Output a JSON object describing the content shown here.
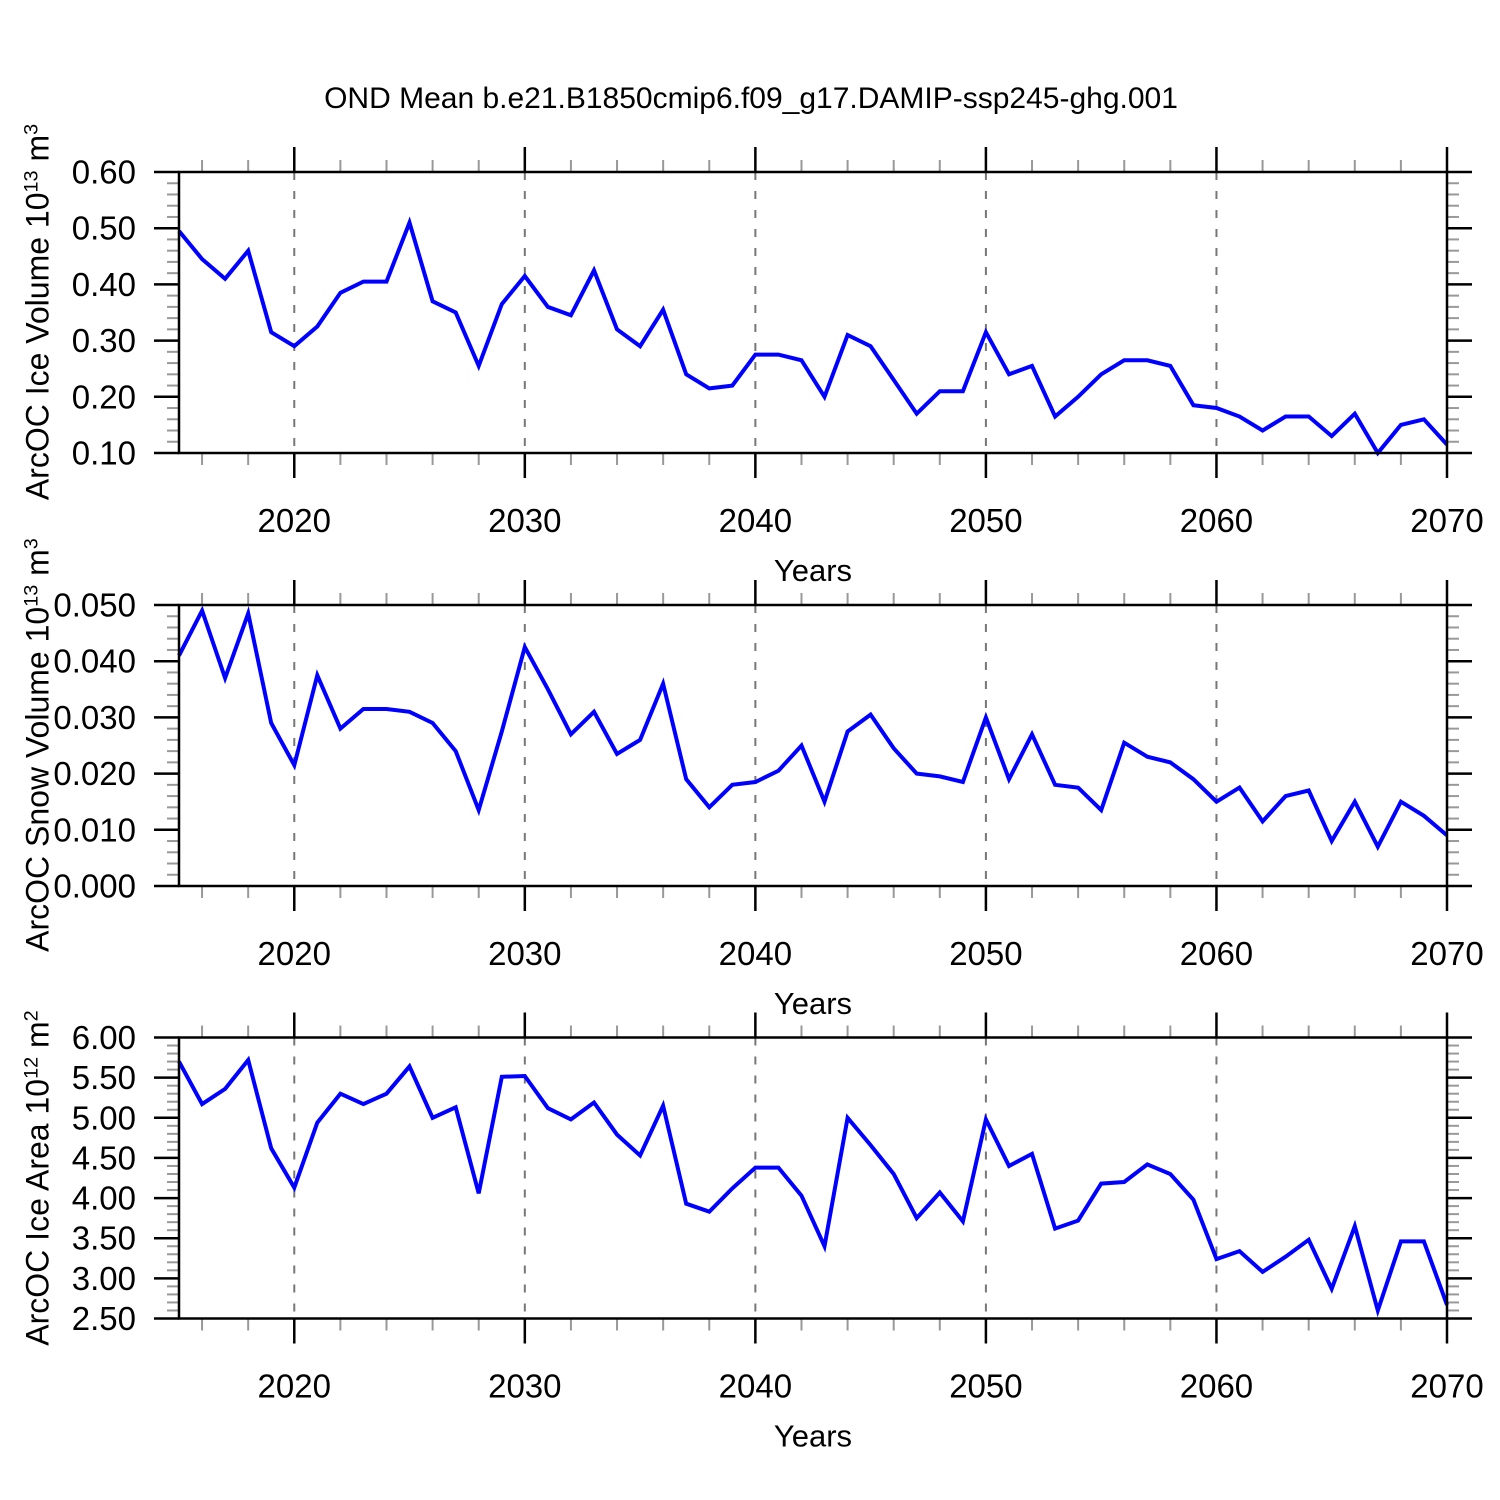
{
  "title": "OND Mean b.e21.B1850cmip6.f09_g17.DAMIP-ssp245-ghg.001",
  "line_color": "#0000ff",
  "years": [
    2015,
    2016,
    2017,
    2018,
    2019,
    2020,
    2021,
    2022,
    2023,
    2024,
    2025,
    2026,
    2027,
    2028,
    2029,
    2030,
    2031,
    2032,
    2033,
    2034,
    2035,
    2036,
    2037,
    2038,
    2039,
    2040,
    2041,
    2042,
    2043,
    2044,
    2045,
    2046,
    2047,
    2048,
    2049,
    2050,
    2051,
    2052,
    2053,
    2054,
    2055,
    2056,
    2057,
    2058,
    2059,
    2060,
    2061,
    2062,
    2063,
    2064,
    2065,
    2066,
    2067,
    2068,
    2069,
    2070
  ],
  "chart_data": [
    {
      "type": "line",
      "name": "ice-volume",
      "ylabel": {
        "base": "ArcOC Ice Volume 10",
        "exp": "13",
        "unit": " m",
        "unit_exp": "3"
      },
      "xlabel": "Years",
      "ylim": [
        0.1,
        0.6
      ],
      "ytick_values": [
        0.1,
        0.2,
        0.3,
        0.4,
        0.5,
        0.6
      ],
      "ytick_labels": [
        "0.10",
        "0.20",
        "0.30",
        "0.40",
        "0.50",
        "0.60"
      ],
      "minor_step": 0.02,
      "xticks": [
        2020,
        2030,
        2040,
        2050,
        2060,
        2070
      ],
      "grid_years": [
        2020,
        2030,
        2040,
        2050,
        2060
      ],
      "values": [
        0.495,
        0.445,
        0.41,
        0.46,
        0.315,
        0.29,
        0.325,
        0.385,
        0.405,
        0.405,
        0.51,
        0.37,
        0.35,
        0.255,
        0.365,
        0.415,
        0.36,
        0.345,
        0.425,
        0.32,
        0.29,
        0.355,
        0.24,
        0.215,
        0.22,
        0.275,
        0.275,
        0.265,
        0.2,
        0.31,
        0.29,
        0.23,
        0.17,
        0.21,
        0.21,
        0.315,
        0.24,
        0.255,
        0.165,
        0.2,
        0.24,
        0.265,
        0.265,
        0.255,
        0.185,
        0.18,
        0.165,
        0.14,
        0.165,
        0.165,
        0.13,
        0.17,
        0.1,
        0.15,
        0.16,
        0.115
      ]
    },
    {
      "type": "line",
      "name": "snow-volume",
      "ylabel": {
        "base": "ArcOC Snow Volume 10",
        "exp": "13",
        "unit": " m",
        "unit_exp": "3"
      },
      "xlabel": "Years",
      "ylim": [
        0.0,
        0.05
      ],
      "ytick_values": [
        0.0,
        0.01,
        0.02,
        0.03,
        0.04,
        0.05
      ],
      "ytick_labels": [
        "0.000",
        "0.010",
        "0.020",
        "0.030",
        "0.040",
        "0.050"
      ],
      "minor_step": 0.002,
      "xticks": [
        2020,
        2030,
        2040,
        2050,
        2060,
        2070
      ],
      "grid_years": [
        2020,
        2030,
        2040,
        2050,
        2060
      ],
      "values": [
        0.041,
        0.049,
        0.037,
        0.0485,
        0.029,
        0.0215,
        0.0375,
        0.028,
        0.0315,
        0.0315,
        0.031,
        0.029,
        0.024,
        0.0135,
        0.0275,
        0.0425,
        0.035,
        0.027,
        0.031,
        0.0235,
        0.026,
        0.036,
        0.019,
        0.014,
        0.018,
        0.0185,
        0.0205,
        0.025,
        0.015,
        0.0275,
        0.0305,
        0.0245,
        0.02,
        0.0195,
        0.0185,
        0.03,
        0.019,
        0.027,
        0.018,
        0.0175,
        0.0135,
        0.0255,
        0.023,
        0.022,
        0.019,
        0.015,
        0.0175,
        0.0115,
        0.016,
        0.017,
        0.008,
        0.015,
        0.007,
        0.015,
        0.0125,
        0.009
      ]
    },
    {
      "type": "line",
      "name": "ice-area",
      "ylabel": {
        "base": "ArcOC Ice Area 10",
        "exp": "12",
        "unit": " m",
        "unit_exp": "2"
      },
      "xlabel": "Years",
      "ylim": [
        2.5,
        6.0
      ],
      "ytick_values": [
        2.5,
        3.0,
        3.5,
        4.0,
        4.5,
        5.0,
        5.5,
        6.0
      ],
      "ytick_labels": [
        "2.50",
        "3.00",
        "3.50",
        "4.00",
        "4.50",
        "5.00",
        "5.50",
        "6.00"
      ],
      "minor_step": 0.1,
      "xticks": [
        2020,
        2030,
        2040,
        2050,
        2060,
        2070
      ],
      "grid_years": [
        2020,
        2030,
        2040,
        2050,
        2060
      ],
      "values": [
        5.7,
        5.17,
        5.36,
        5.72,
        4.62,
        4.13,
        4.94,
        5.3,
        5.17,
        5.3,
        5.64,
        5.0,
        5.13,
        4.06,
        5.51,
        5.52,
        5.12,
        4.98,
        5.19,
        4.79,
        4.53,
        5.15,
        3.93,
        3.83,
        4.12,
        4.38,
        4.38,
        4.03,
        3.4,
        5.0,
        4.66,
        4.3,
        3.75,
        4.07,
        3.71,
        4.98,
        4.4,
        4.55,
        3.62,
        3.72,
        4.18,
        4.2,
        4.42,
        4.3,
        3.98,
        3.24,
        3.34,
        3.08,
        3.27,
        3.48,
        2.87,
        3.65,
        2.6,
        3.46,
        3.46,
        2.67
      ]
    }
  ]
}
